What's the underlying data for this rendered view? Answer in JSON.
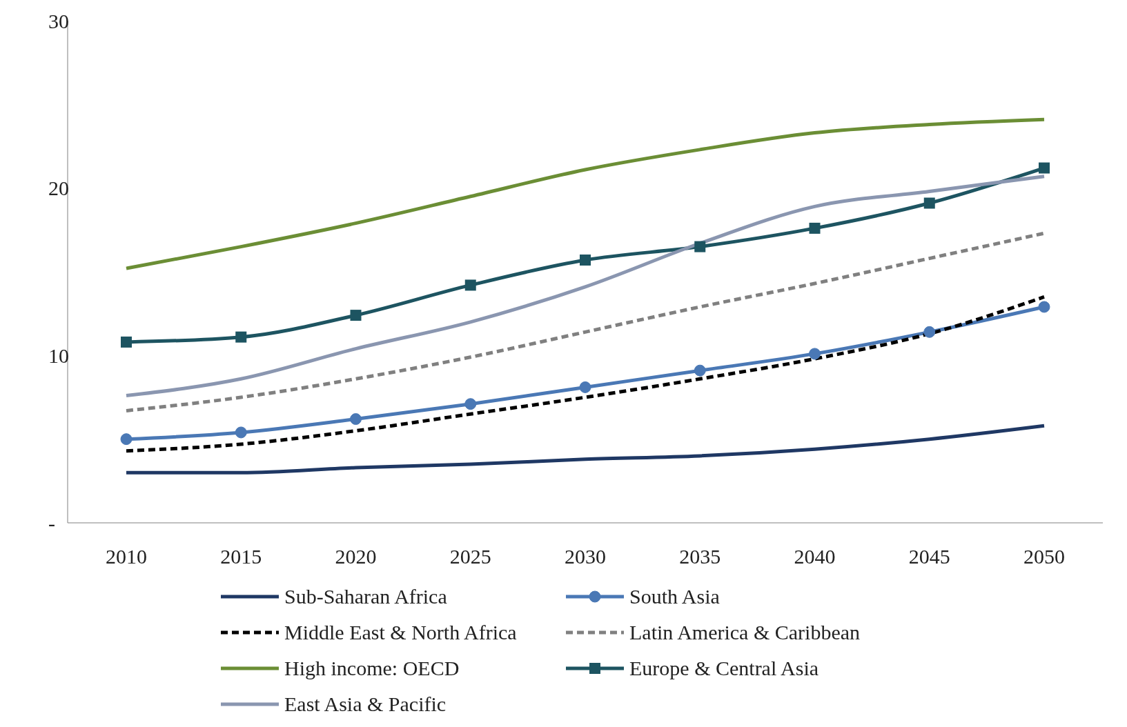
{
  "chart_data": {
    "type": "line",
    "categories": [
      "2010",
      "2015",
      "2020",
      "2025",
      "2030",
      "2035",
      "2040",
      "2045",
      "2050"
    ],
    "ylim": [
      0,
      30
    ],
    "yticks": [
      {
        "value": 0,
        "label": "-"
      },
      10,
      20,
      30
    ],
    "grid": false,
    "legend": "bottom",
    "series": [
      {
        "name": "Sub-Saharan Africa",
        "color": "#1f3864",
        "line_style": "solid",
        "marker": "none",
        "values": [
          3.0,
          3.0,
          3.3,
          3.5,
          3.8,
          4.0,
          4.4,
          5.0,
          5.8
        ]
      },
      {
        "name": "South Asia",
        "color": "#4a78b5",
        "line_style": "solid",
        "marker": "circle",
        "values": [
          5.0,
          5.4,
          6.2,
          7.1,
          8.1,
          9.1,
          10.1,
          11.4,
          12.9
        ]
      },
      {
        "name": "Middle East & North Africa",
        "color": "#000000",
        "line_style": "dashed",
        "marker": "none",
        "values": [
          4.3,
          4.7,
          5.5,
          6.5,
          7.5,
          8.6,
          9.8,
          11.3,
          13.5
        ]
      },
      {
        "name": "Latin America & Caribbean",
        "color": "#808080",
        "line_style": "dashed",
        "marker": "none",
        "values": [
          6.7,
          7.5,
          8.6,
          9.9,
          11.4,
          12.9,
          14.3,
          15.8,
          17.3
        ]
      },
      {
        "name": "High income: OECD",
        "color": "#6b8e35",
        "line_style": "solid",
        "marker": "none",
        "values": [
          15.2,
          16.5,
          17.9,
          19.5,
          21.1,
          22.3,
          23.3,
          23.8,
          24.1
        ]
      },
      {
        "name": "Europe & Central Asia",
        "color": "#1d5461",
        "line_style": "solid",
        "marker": "square",
        "values": [
          10.8,
          11.1,
          12.4,
          14.2,
          15.7,
          16.5,
          17.6,
          19.1,
          21.2
        ]
      },
      {
        "name": "East Asia & Pacific",
        "color": "#8a96b0",
        "line_style": "solid",
        "marker": "none",
        "values": [
          7.6,
          8.6,
          10.4,
          12.0,
          14.1,
          16.7,
          18.9,
          19.8,
          20.7
        ]
      }
    ]
  }
}
